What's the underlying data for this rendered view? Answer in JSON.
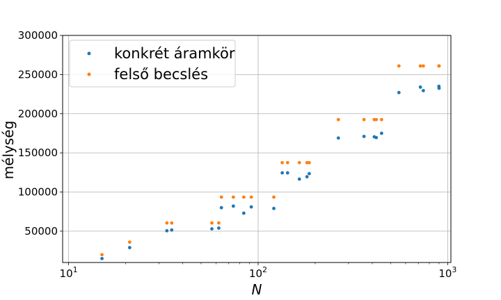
{
  "chart_data": {
    "type": "scatter",
    "title": "",
    "xlabel": "N",
    "ylabel": "mélység",
    "xscale": "log",
    "xlim": [
      9.3,
      1040
    ],
    "ylim": [
      10000,
      300000
    ],
    "grid": true,
    "legend_position": "top-left",
    "x_ticks": [
      {
        "value": 10,
        "base": "10",
        "exp": "1"
      },
      {
        "value": 100,
        "base": "10",
        "exp": "2"
      },
      {
        "value": 1000,
        "base": "10",
        "exp": "3"
      }
    ],
    "y_ticks": [
      {
        "value": 50000,
        "label": "50000"
      },
      {
        "value": 100000,
        "label": "100000"
      },
      {
        "value": 150000,
        "label": "150000"
      },
      {
        "value": 200000,
        "label": "200000"
      },
      {
        "value": 250000,
        "label": "250000"
      },
      {
        "value": 300000,
        "label": "300000"
      }
    ],
    "series": [
      {
        "name": "konkrét áramkör",
        "color": "#1f77b4",
        "points": [
          [
            15,
            15000
          ],
          [
            21,
            29000
          ],
          [
            33,
            50500
          ],
          [
            35,
            51500
          ],
          [
            57,
            53000
          ],
          [
            62,
            54000
          ],
          [
            64,
            80000
          ],
          [
            74,
            82000
          ],
          [
            84,
            73000
          ],
          [
            92,
            81000
          ],
          [
            121,
            79000
          ],
          [
            134,
            124500
          ],
          [
            143,
            124500
          ],
          [
            165,
            116500
          ],
          [
            181,
            119500
          ],
          [
            186,
            123500
          ],
          [
            265,
            169000
          ],
          [
            362,
            171000
          ],
          [
            410,
            170500
          ],
          [
            420,
            169500
          ],
          [
            448,
            175000
          ],
          [
            553,
            227000
          ],
          [
            718,
            234000
          ],
          [
            744,
            229500
          ],
          [
            899,
            235000
          ],
          [
            901,
            232500
          ]
        ]
      },
      {
        "name": "felső becslés",
        "color": "#ff7f0e",
        "points": [
          [
            15,
            20000
          ],
          [
            21,
            36000
          ],
          [
            33,
            60500
          ],
          [
            35,
            60500
          ],
          [
            57,
            60500
          ],
          [
            62,
            60500
          ],
          [
            64,
            93500
          ],
          [
            74,
            93500
          ],
          [
            84,
            93500
          ],
          [
            92,
            93500
          ],
          [
            121,
            93500
          ],
          [
            134,
            137500
          ],
          [
            143,
            137500
          ],
          [
            165,
            137500
          ],
          [
            181,
            137500
          ],
          [
            186,
            137500
          ],
          [
            265,
            192500
          ],
          [
            362,
            192500
          ],
          [
            410,
            192500
          ],
          [
            420,
            192500
          ],
          [
            448,
            192500
          ],
          [
            553,
            261000
          ],
          [
            718,
            261000
          ],
          [
            744,
            261000
          ],
          [
            899,
            261000
          ],
          [
            901,
            261000
          ]
        ]
      }
    ]
  }
}
